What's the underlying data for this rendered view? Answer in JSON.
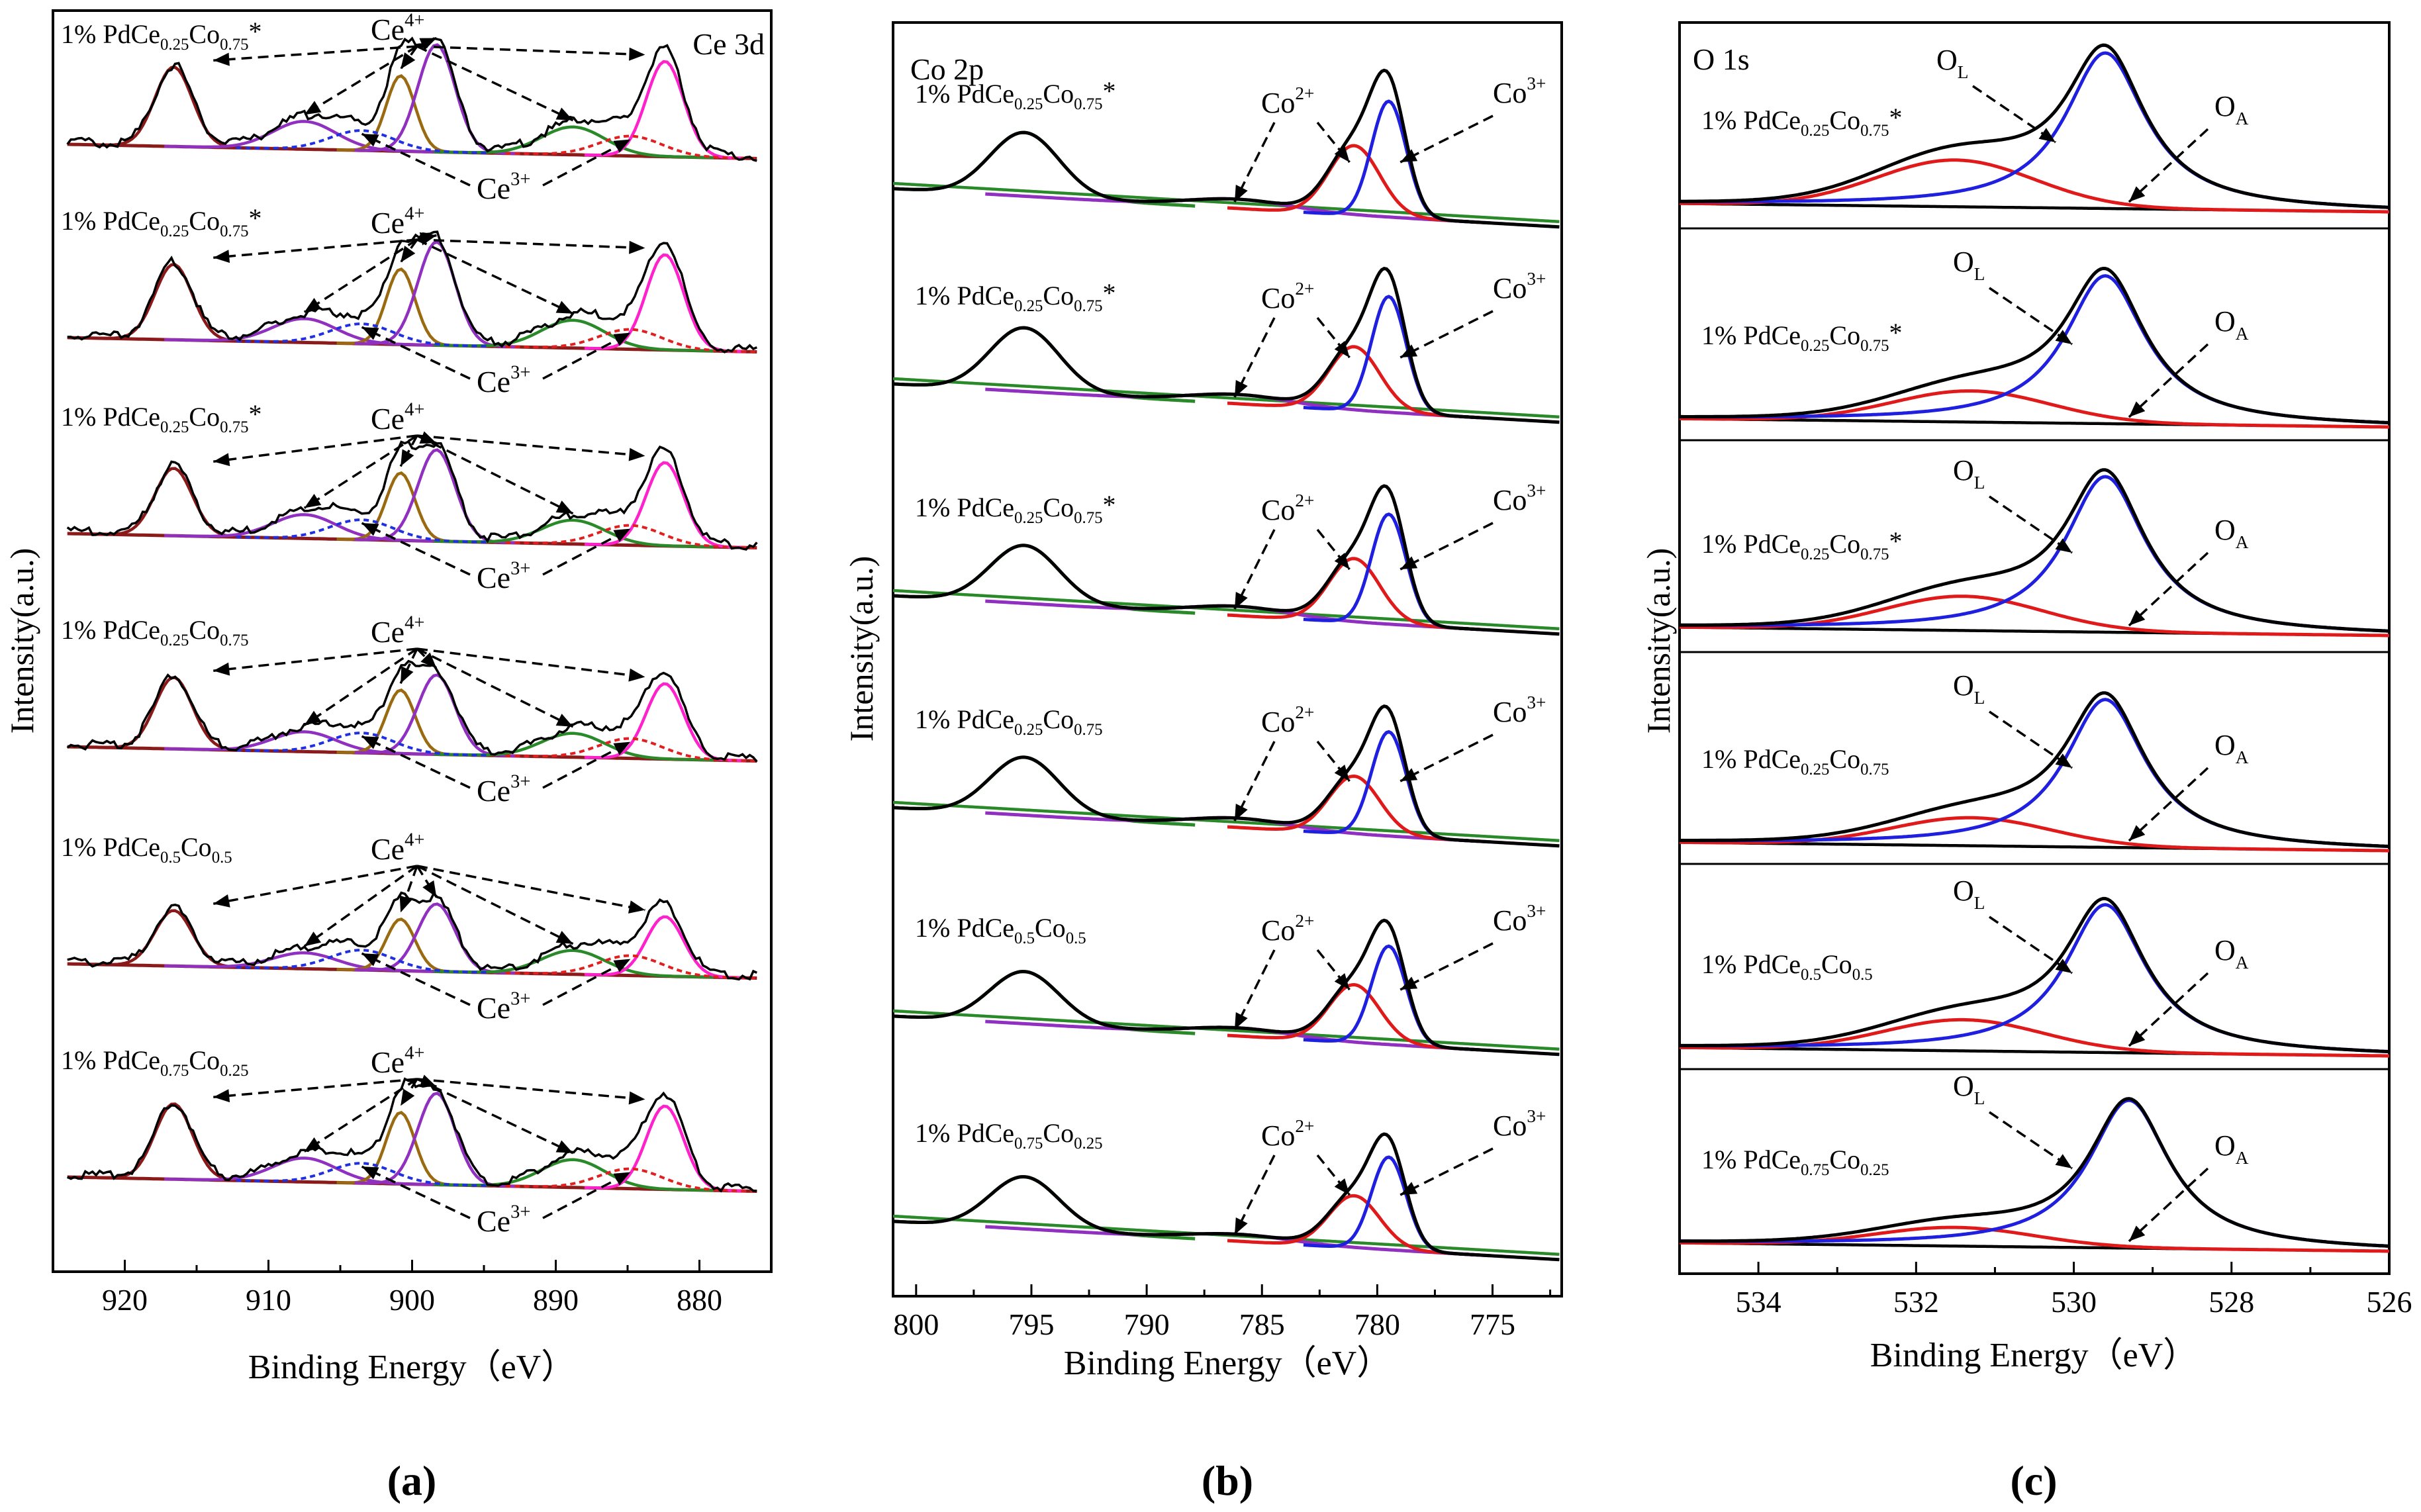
{
  "figure": {
    "panel_labels": [
      "(a)",
      "(b)",
      "(c)"
    ]
  },
  "colors": {
    "experimental": "#000000",
    "background": "#8B1A1A",
    "ce_u0": "#ff22cc",
    "ce_u1": "#9a6a10",
    "ce_u2": "#2a8a2a",
    "ce_u3": "#9030c0",
    "ce_v_red": "#8a1a1a",
    "ce3_blue": "#2030e0",
    "ce3_red": "#e02020",
    "co3": "#1f1fe0",
    "co2": "#e01a1a",
    "co_sat": "#9030c0",
    "co_2p12": "#2a8a2a",
    "co_bg": "#2a8a2a",
    "o_lattice": "#1f1fe0",
    "o_adsorbed": "#e01a1a",
    "o_bg": "#000000"
  },
  "chart_data": [
    {
      "type": "line",
      "panel": "(a)",
      "title": "Ce 3d",
      "xlabel": "Binding Energy（eV）",
      "ylabel": "Intensity(a.u.)",
      "xlim": [
        925,
        875
      ],
      "x_ticks": [
        "920",
        "910",
        "900",
        "890",
        "880"
      ],
      "grid": false,
      "peak_positions_eV": [
        916.6,
        907.5,
        900.8,
        898.3,
        888.8,
        882.4
      ],
      "peak_labels": {
        "ce4": "Ce",
        "ce4_sup": "4+",
        "ce3": "Ce",
        "ce3_sup": "3+"
      },
      "series": [
        {
          "name": "1% PdCe0.25Co0.75*",
          "label": {
            "pre": "1% PdCe",
            "s1": "0.25",
            "mid": "Co",
            "s2": "0.75",
            "post": "*"
          },
          "peak_heights": [
            1.0,
            0.35,
            0.95,
            1.35,
            0.35,
            1.2
          ]
        },
        {
          "name": "1% PdCe0.25Co0.75*",
          "label": {
            "pre": "1% PdCe",
            "s1": "0.25",
            "mid": "Co",
            "s2": "0.75",
            "post": "*"
          },
          "peak_heights": [
            0.95,
            0.3,
            0.95,
            1.3,
            0.35,
            1.2
          ]
        },
        {
          "name": "1% PdCe0.25Co0.75*",
          "label": {
            "pre": "1% PdCe",
            "s1": "0.25",
            "mid": "Co",
            "s2": "0.75",
            "post": "*"
          },
          "peak_heights": [
            0.85,
            0.3,
            0.85,
            1.15,
            0.3,
            1.05
          ]
        },
        {
          "name": "1% PdCe0.25Co0.75",
          "label": {
            "pre": "1% PdCe",
            "s1": "0.25",
            "mid": "Co",
            "s2": "0.75",
            "post": ""
          },
          "peak_heights": [
            0.9,
            0.25,
            0.8,
            1.0,
            0.3,
            0.95
          ]
        },
        {
          "name": "1% PdCe0.5Co0.5",
          "label": {
            "pre": "1% PdCe",
            "s1": "0.5",
            "mid": "Co",
            "s2": "0.5",
            "post": ""
          },
          "peak_heights": [
            0.7,
            0.2,
            0.65,
            0.85,
            0.3,
            0.75
          ]
        },
        {
          "name": "1% PdCe0.75Co0.25",
          "label": {
            "pre": "1% PdCe",
            "s1": "0.75",
            "mid": "Co",
            "s2": "0.25",
            "post": ""
          },
          "peak_heights": [
            0.95,
            0.3,
            0.9,
            1.15,
            0.35,
            1.05
          ]
        }
      ]
    },
    {
      "type": "line",
      "panel": "(b)",
      "title": "Co 2p",
      "xlabel": "Binding Energy（eV）",
      "ylabel": "Intensity(a.u.)",
      "xlim": [
        801,
        772
      ],
      "x_ticks": [
        "800",
        "795",
        "790",
        "785",
        "780",
        "775"
      ],
      "grid": false,
      "peak_positions_eV": [
        795.3,
        786.0,
        780.9,
        779.5
      ],
      "peak_labels": {
        "co2": "Co",
        "co2_sup": "2+",
        "co3": "Co",
        "co3_sup": "3+"
      },
      "series": [
        {
          "name": "1% PdCe0.25Co0.75*",
          "label": {
            "pre": "1% PdCe",
            "s1": "0.25",
            "mid": "Co",
            "s2": "0.75",
            "post": "*"
          },
          "peak_heights": [
            0.55,
            0.08,
            0.6,
            1.0
          ]
        },
        {
          "name": "1% PdCe0.25Co0.75*",
          "label": {
            "pre": "1% PdCe",
            "s1": "0.25",
            "mid": "Co",
            "s2": "0.75",
            "post": "*"
          },
          "peak_heights": [
            0.55,
            0.08,
            0.55,
            1.0
          ]
        },
        {
          "name": "1% PdCe0.25Co0.75*",
          "label": {
            "pre": "1% PdCe",
            "s1": "0.25",
            "mid": "Co",
            "s2": "0.75",
            "post": "*"
          },
          "peak_heights": [
            0.5,
            0.08,
            0.55,
            0.95
          ]
        },
        {
          "name": "1% PdCe0.25Co0.75",
          "label": {
            "pre": "1% PdCe",
            "s1": "0.25",
            "mid": "Co",
            "s2": "0.75",
            "post": ""
          },
          "peak_heights": [
            0.5,
            0.08,
            0.5,
            0.9
          ]
        },
        {
          "name": "1% PdCe0.5Co0.5",
          "label": {
            "pre": "1% PdCe",
            "s1": "0.5",
            "mid": "Co",
            "s2": "0.5",
            "post": ""
          },
          "peak_heights": [
            0.45,
            0.07,
            0.5,
            0.85
          ]
        },
        {
          "name": "1% PdCe0.75Co0.25",
          "label": {
            "pre": "1% PdCe",
            "s1": "0.75",
            "mid": "Co",
            "s2": "0.25",
            "post": ""
          },
          "peak_heights": [
            0.45,
            0.06,
            0.45,
            0.8
          ]
        }
      ]
    },
    {
      "type": "line",
      "panel": "(c)",
      "title": "O 1s",
      "xlabel": "Binding Energy（eV）",
      "ylabel": "Intensity(a.u.)",
      "xlim": [
        535,
        526
      ],
      "x_ticks": [
        "534",
        "532",
        "530",
        "528",
        "526"
      ],
      "grid": false,
      "peak_labels": {
        "ol": "O",
        "ol_sub": "L",
        "oa": "O",
        "oa_sub": "A"
      },
      "series": [
        {
          "name": "1% PdCe0.25Co0.75*",
          "label": {
            "pre": "1% PdCe",
            "s1": "0.25",
            "mid": "Co",
            "s2": "0.75",
            "post": "*"
          },
          "lattice": {
            "center": 529.6,
            "height": 1.0
          },
          "adsorbed": {
            "center": 531.5,
            "height": 0.3
          }
        },
        {
          "name": "1% PdCe0.25Co0.75*",
          "label": {
            "pre": "1% PdCe",
            "s1": "0.25",
            "mid": "Co",
            "s2": "0.75",
            "post": "*"
          },
          "lattice": {
            "center": 529.6,
            "height": 0.95
          },
          "adsorbed": {
            "center": 531.3,
            "height": 0.2
          }
        },
        {
          "name": "1% PdCe0.25Co0.75*",
          "label": {
            "pre": "1% PdCe",
            "s1": "0.25",
            "mid": "Co",
            "s2": "0.75",
            "post": "*"
          },
          "lattice": {
            "center": 529.6,
            "height": 1.0
          },
          "adsorbed": {
            "center": 531.4,
            "height": 0.22
          }
        },
        {
          "name": "1% PdCe0.25Co0.75",
          "label": {
            "pre": "1% PdCe",
            "s1": "0.25",
            "mid": "Co",
            "s2": "0.75",
            "post": ""
          },
          "lattice": {
            "center": 529.6,
            "height": 0.95
          },
          "adsorbed": {
            "center": 531.3,
            "height": 0.18
          }
        },
        {
          "name": "1% PdCe0.5Co0.5",
          "label": {
            "pre": "1% PdCe",
            "s1": "0.5",
            "mid": "Co",
            "s2": "0.5",
            "post": ""
          },
          "lattice": {
            "center": 529.6,
            "height": 0.95
          },
          "adsorbed": {
            "center": 531.4,
            "height": 0.2
          }
        },
        {
          "name": "1% PdCe0.75Co0.25",
          "label": {
            "pre": "1% PdCe",
            "s1": "0.75",
            "mid": "Co",
            "s2": "0.25",
            "post": ""
          },
          "lattice": {
            "center": 529.3,
            "height": 0.95
          },
          "adsorbed": {
            "center": 531.5,
            "height": 0.12
          }
        }
      ]
    }
  ]
}
